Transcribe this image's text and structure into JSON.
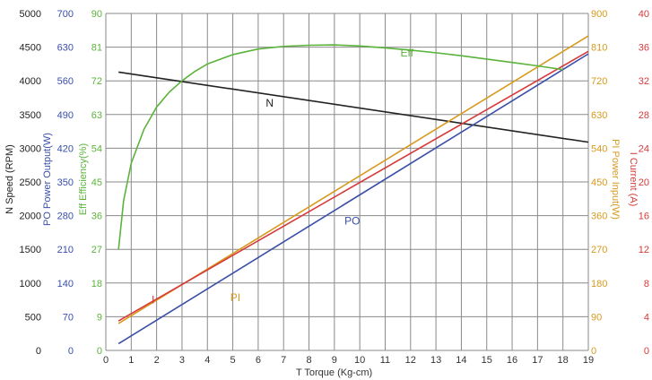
{
  "chart_data": {
    "type": "line",
    "title": "",
    "grid": true,
    "x_axis": {
      "symbol": "T",
      "label": "Torque (Kg-cm)",
      "range": [
        0,
        19
      ],
      "ticks": [
        0,
        1,
        2,
        3,
        4,
        5,
        6,
        7,
        8,
        9,
        10,
        11,
        12,
        13,
        14,
        15,
        16,
        17,
        18,
        19
      ],
      "tick_labels": [
        "0",
        "1",
        "2",
        "3",
        "4",
        "5",
        "6",
        "7",
        "8",
        "9",
        "10",
        "11",
        "12",
        "13",
        "14",
        "15",
        "16",
        "17",
        "18",
        "19"
      ]
    },
    "y_axes": [
      {
        "key": "N",
        "symbol": "N",
        "label": "Speed (RPM)",
        "side": "left",
        "color": "#222222",
        "range": [
          0,
          5000
        ],
        "ticks": [
          0,
          500,
          1000,
          1500,
          2000,
          2500,
          3000,
          3500,
          4000,
          4500,
          5000
        ],
        "tick_labels": [
          "0",
          "500",
          "1000",
          "1500",
          "2000",
          "2500",
          "3000",
          "3500",
          "4000",
          "4500",
          "5000"
        ]
      },
      {
        "key": "PO",
        "symbol": "PO",
        "label": "Power Output(W)",
        "side": "left",
        "color": "#3a4fa8",
        "range": [
          0,
          700
        ],
        "ticks": [
          0,
          70,
          140,
          210,
          280,
          350,
          420,
          490,
          560,
          630,
          700
        ],
        "tick_labels": [
          "0",
          "70",
          "140",
          "210",
          "280",
          "350",
          "420",
          "490",
          "560",
          "630",
          "700"
        ]
      },
      {
        "key": "Eff",
        "symbol": "Eff",
        "label": "Efficiency(%)",
        "side": "left",
        "color": "#5bb33b",
        "range": [
          0,
          90
        ],
        "ticks": [
          0,
          9,
          18,
          27,
          36,
          45,
          54,
          63,
          72,
          81,
          90
        ],
        "tick_labels": [
          "0",
          "9",
          "18",
          "27",
          "36",
          "45",
          "54",
          "63",
          "72",
          "81",
          "90"
        ]
      },
      {
        "key": "PI",
        "symbol": "PI",
        "label": "Power Input(W)",
        "side": "right",
        "color": "#d89a1e",
        "range": [
          0,
          900
        ],
        "ticks": [
          0,
          90,
          180,
          270,
          360,
          450,
          540,
          630,
          720,
          810,
          900
        ],
        "tick_labels": [
          "0",
          "90",
          "180",
          "270",
          "360",
          "450",
          "540",
          "630",
          "720",
          "810",
          "900"
        ]
      },
      {
        "key": "I",
        "symbol": "I",
        "label": "Current (A)",
        "side": "right",
        "color": "#d63a3a",
        "range": [
          0,
          40
        ],
        "ticks": [
          0,
          4,
          8,
          12,
          16,
          20,
          24,
          28,
          32,
          36,
          40
        ],
        "tick_labels": [
          "0",
          "4",
          "8",
          "12",
          "16",
          "20",
          "24",
          "28",
          "32",
          "36",
          "40"
        ]
      }
    ],
    "series": [
      {
        "name": "N",
        "axis": "N",
        "color": "#222222",
        "x": [
          0.5,
          19
        ],
        "y": [
          4130,
          3090
        ]
      },
      {
        "name": "PO",
        "axis": "PO",
        "color": "#3a4fa8",
        "x": [
          0.5,
          19
        ],
        "y": [
          14,
          616
        ]
      },
      {
        "name": "PI",
        "axis": "PI",
        "color": "#d89a1e",
        "x": [
          0.5,
          19
        ],
        "y": [
          72,
          840
        ]
      },
      {
        "name": "I",
        "axis": "I",
        "color": "#d63a3a",
        "x": [
          0.5,
          19
        ],
        "y": [
          3.5,
          35.5
        ]
      },
      {
        "name": "Eff",
        "axis": "Eff",
        "color": "#5bb33b",
        "x": [
          0.5,
          0.7,
          1,
          1.5,
          2,
          2.5,
          3,
          3.5,
          4,
          5,
          6,
          7,
          8,
          9,
          10,
          11,
          12,
          13,
          14,
          15,
          16,
          17,
          18
        ],
        "y": [
          27,
          40,
          50,
          59,
          65,
          69,
          72,
          74.5,
          76.5,
          79,
          80.5,
          81.2,
          81.5,
          81.6,
          81.3,
          80.8,
          80.2,
          79.5,
          78.7,
          77.8,
          76.9,
          76,
          75
        ]
      }
    ],
    "annotations": [
      {
        "text": "Eff",
        "series": "Eff",
        "x": 11.6,
        "y": 78.5
      },
      {
        "text": "N",
        "series": "N",
        "x": 6.3,
        "y": 3620
      },
      {
        "text": "PO",
        "series": "PO",
        "x": 9.4,
        "y": 262
      },
      {
        "text": "PI",
        "series": "PI",
        "x": 4.9,
        "y": 132
      },
      {
        "text": "I",
        "series": "I",
        "x": 1.8,
        "y": 5.6
      }
    ]
  }
}
